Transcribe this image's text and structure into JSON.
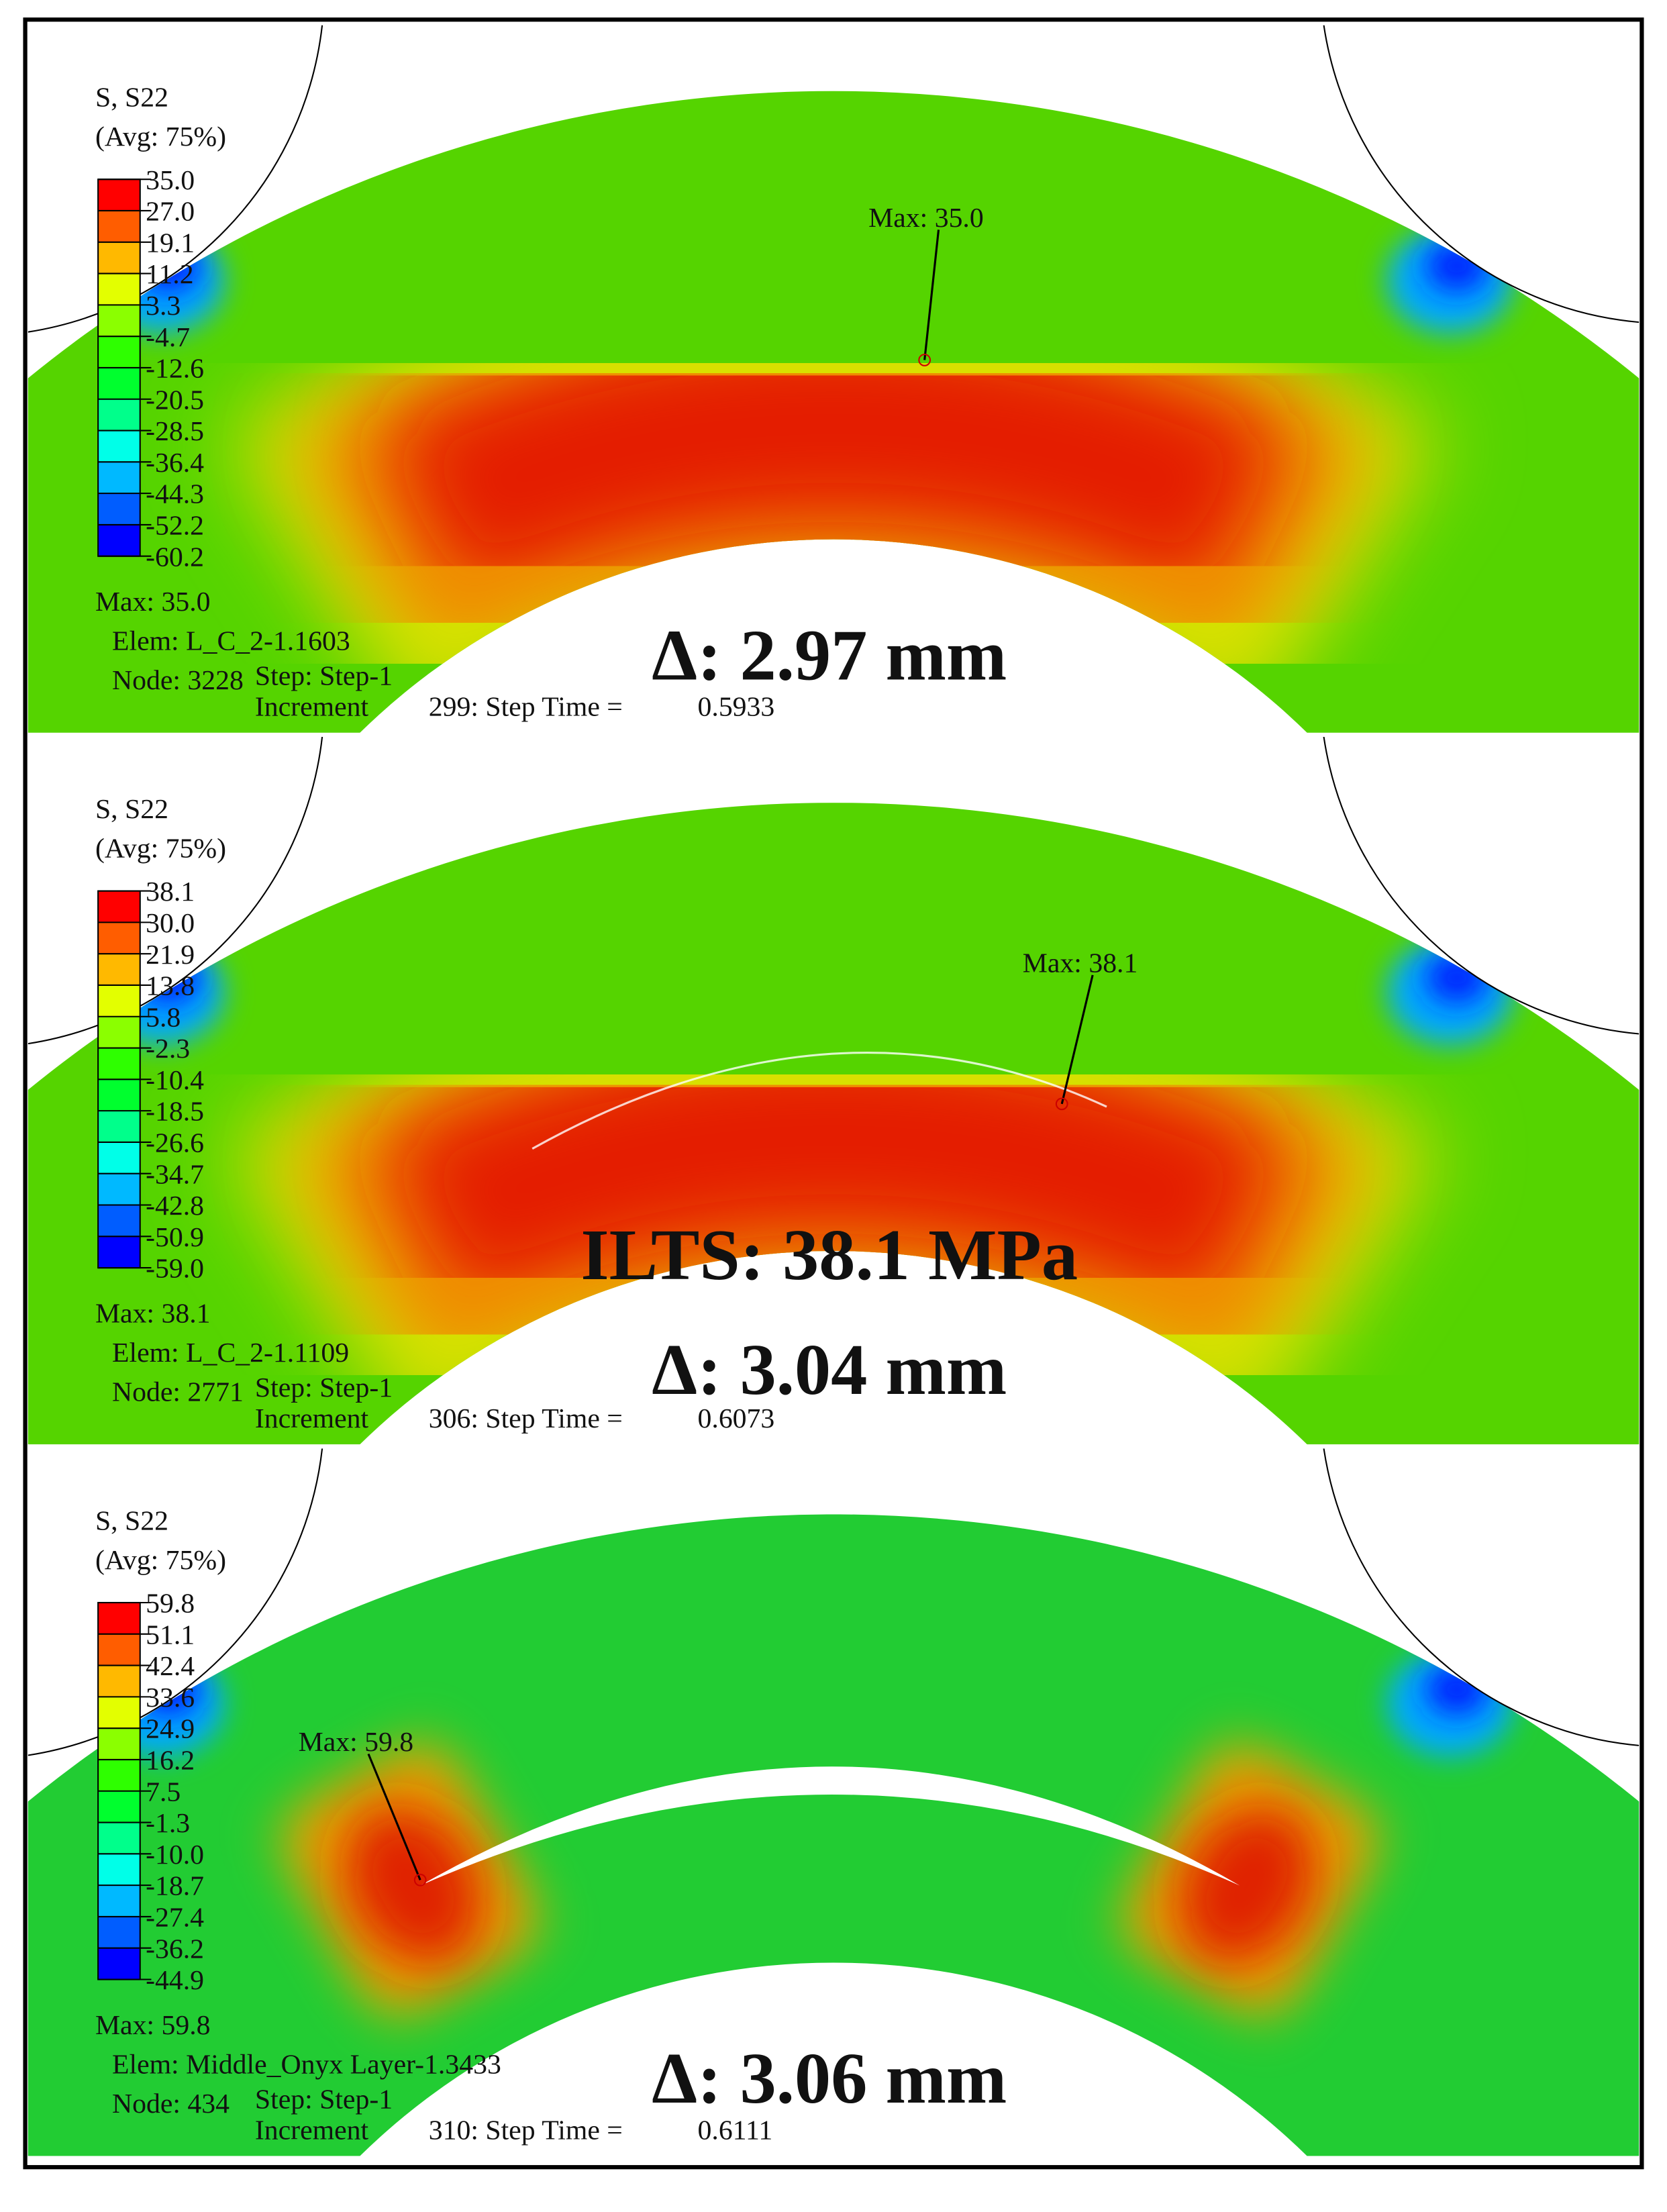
{
  "panels": [
    {
      "legend_title": "S, S22",
      "legend_avg": "(Avg: 75%)",
      "levels": [
        "35.0",
        "27.0",
        "19.1",
        "11.2",
        "3.3",
        "-4.7",
        "-12.6",
        "-20.5",
        "-28.5",
        "-36.4",
        "-44.3",
        "-52.2",
        "-60.2"
      ],
      "max_label": "Max: 35.0",
      "elem": "Elem: L_C_2-1.1603",
      "node": "Node: 3228",
      "step": "Step: Step-1",
      "increment": "Increment",
      "increment_no": "299: Step Time =",
      "step_time": "0.5933",
      "max_annotation": "Max: 35.0",
      "delta": "Δ: 2.97 mm"
    },
    {
      "legend_title": "S, S22",
      "legend_avg": "(Avg: 75%)",
      "levels": [
        "38.1",
        "30.0",
        "21.9",
        "13.8",
        "5.8",
        "-2.3",
        "-10.4",
        "-18.5",
        "-26.6",
        "-34.7",
        "-42.8",
        "-50.9",
        "-59.0"
      ],
      "max_label": "Max: 38.1",
      "elem": "Elem: L_C_2-1.1109",
      "node": "Node: 2771",
      "step": "Step: Step-1",
      "increment": "Increment",
      "increment_no": "306: Step Time =",
      "step_time": "0.6073",
      "max_annotation": "Max: 38.1",
      "ilts": "ILTS: 38.1 MPa",
      "delta": "Δ: 3.04 mm"
    },
    {
      "legend_title": "S, S22",
      "legend_avg": "(Avg: 75%)",
      "levels": [
        "59.8",
        "51.1",
        "42.4",
        "33.6",
        "24.9",
        "16.2",
        "7.5",
        "-1.3",
        "-10.0",
        "-18.7",
        "-27.4",
        "-36.2",
        "-44.9"
      ],
      "max_label": "Max: 59.8",
      "elem": "Elem: Middle_Onyx Layer-1.3433",
      "node": "Node: 434",
      "step": "Step: Step-1",
      "increment": "Increment",
      "increment_no": "310: Step Time =",
      "step_time": "0.6111",
      "max_annotation": "Max: 59.8",
      "delta": "Δ: 3.06 mm"
    }
  ]
}
